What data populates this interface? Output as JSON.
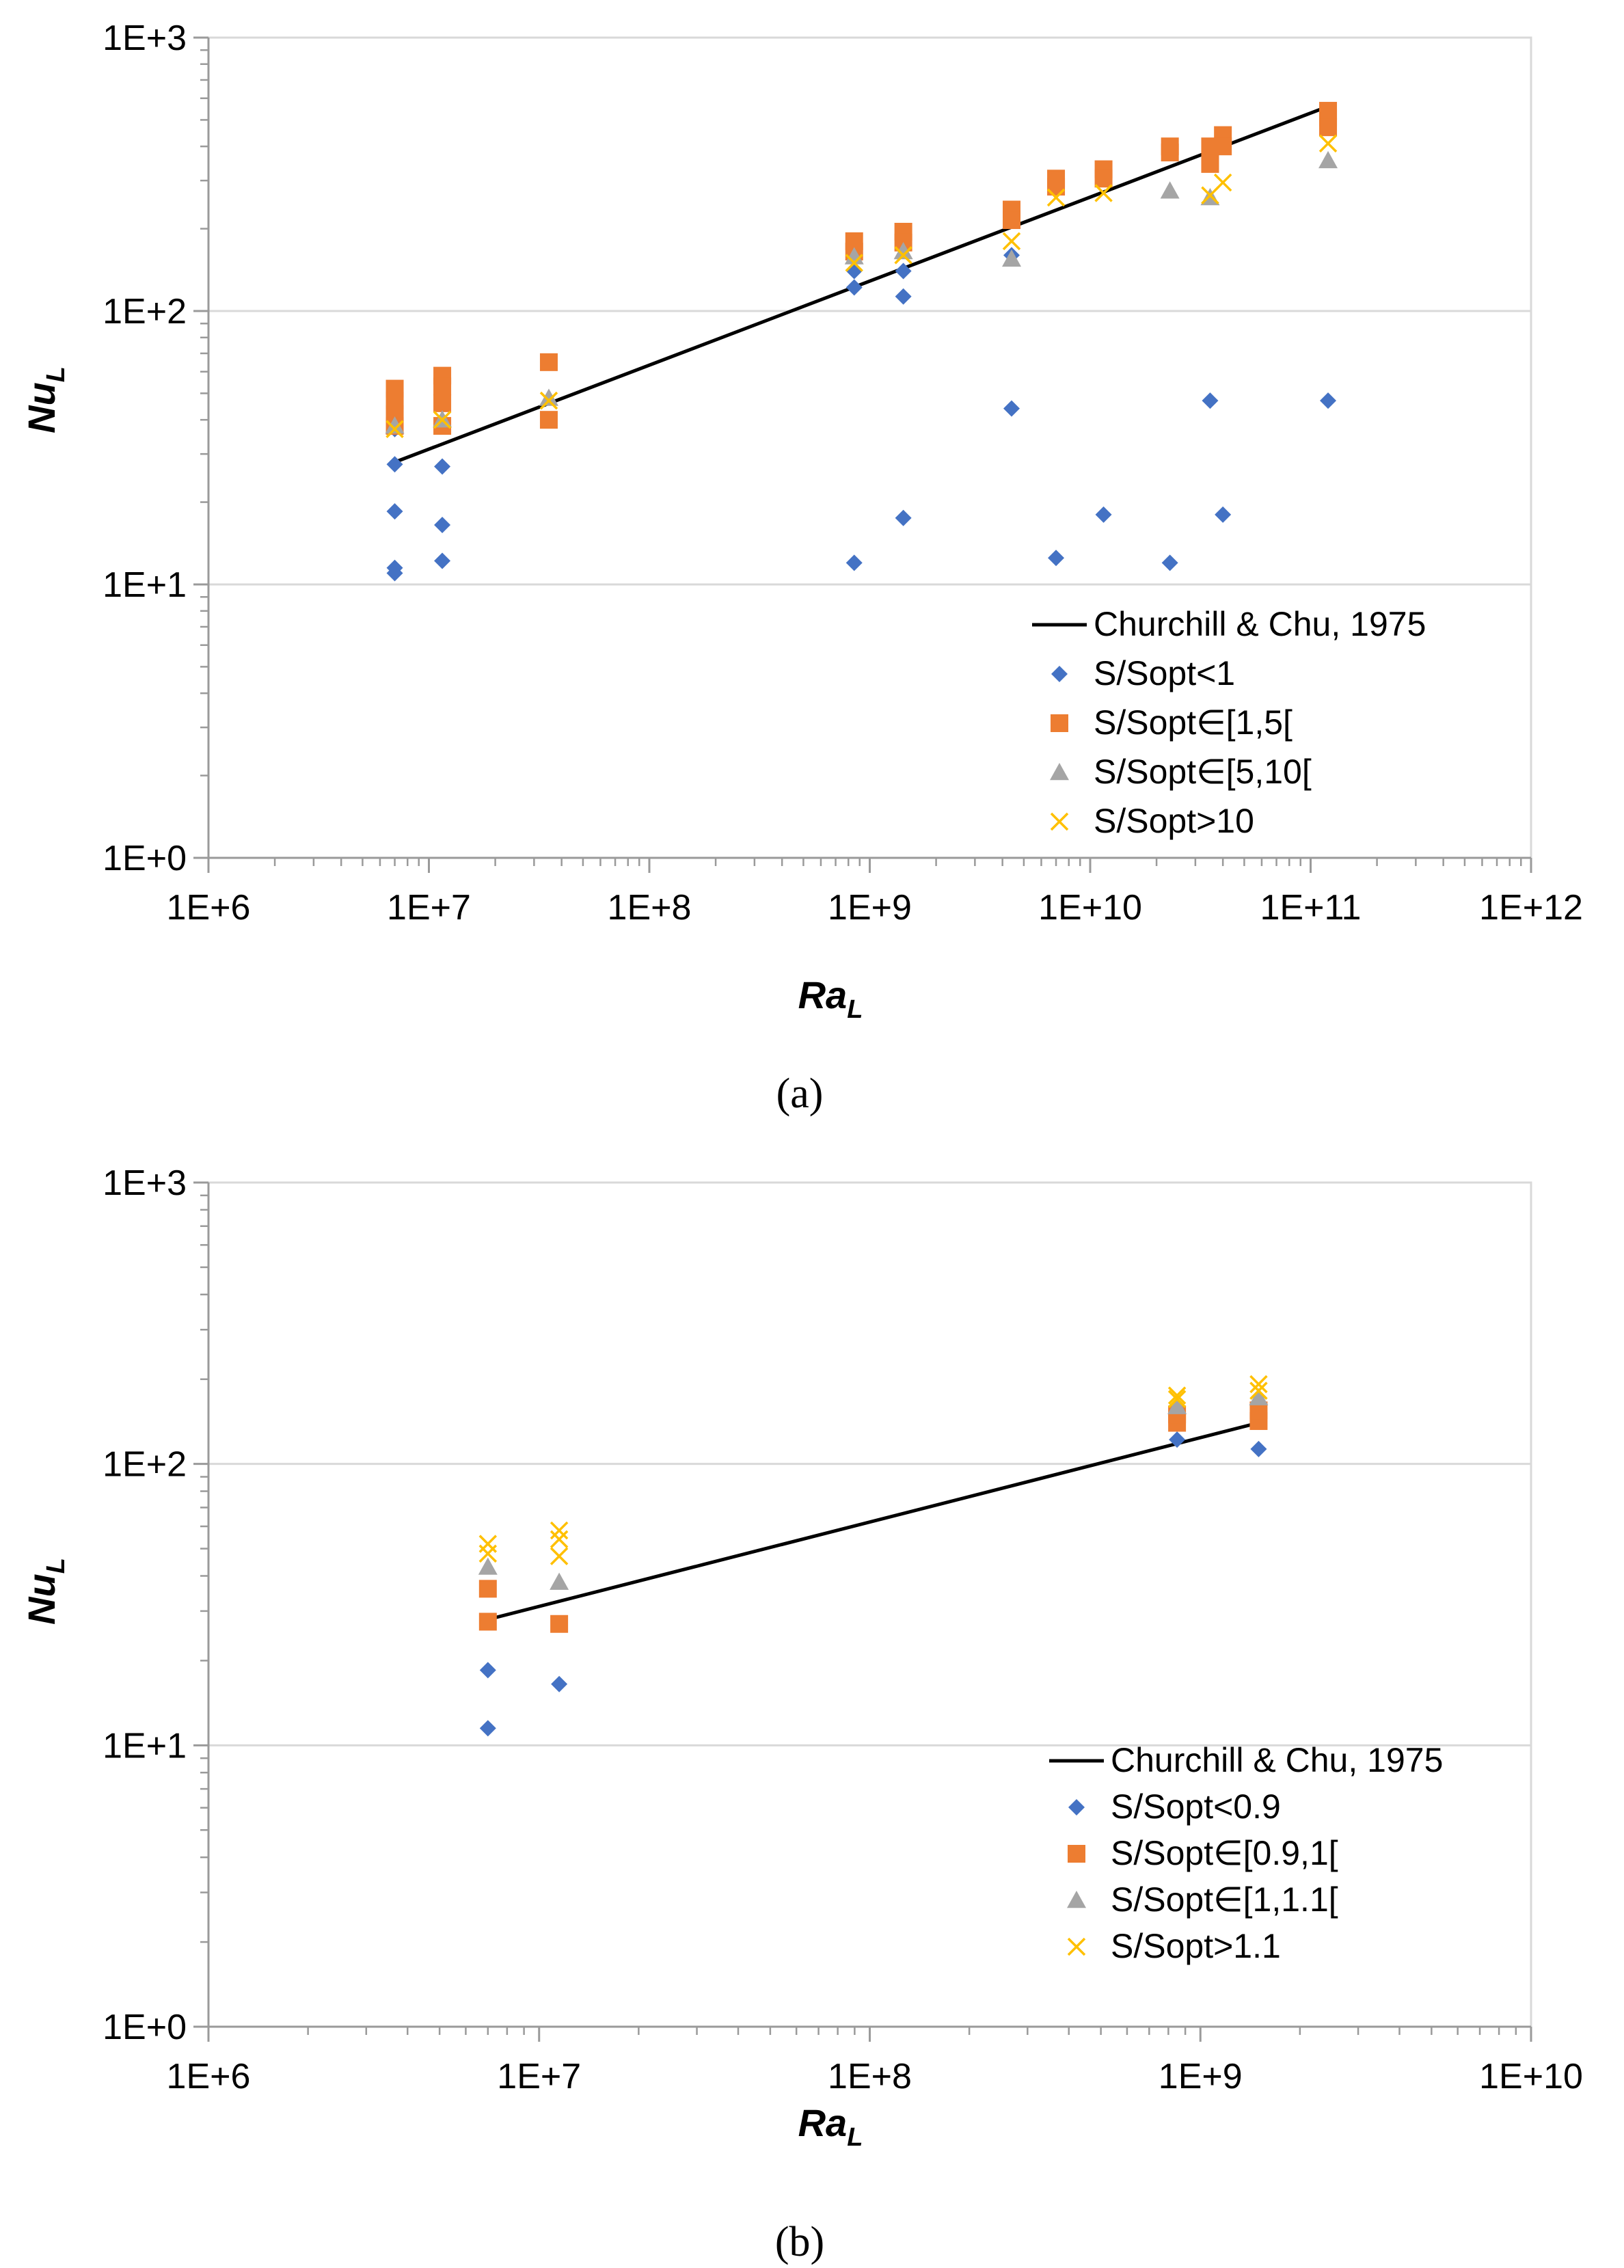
{
  "chart_data": [
    {
      "type": "scatter",
      "panel_label": "(a)",
      "xscale": "log",
      "yscale": "log",
      "xlim": [
        1000000,
        1000000000000
      ],
      "ylim": [
        1,
        1000
      ],
      "x_ticks": [
        "1E+6",
        "1E+7",
        "1E+8",
        "1E+9",
        "1E+10",
        "1E+11",
        "1E+12"
      ],
      "y_ticks": [
        "1E+0",
        "1E+1",
        "1E+2",
        "1E+3"
      ],
      "xlabel": "Ra",
      "xlabel_sub": "L",
      "ylabel": "Nu",
      "ylabel_sub": "L",
      "legend_position": "bottom-right",
      "series": [
        {
          "name": "Churchill & Chu, 1975",
          "kind": "line",
          "color": "#000000",
          "x": [
            7000000,
            120000000000
          ],
          "y": [
            28,
            560
          ]
        },
        {
          "name": "S/Sopt<1",
          "marker": "diamond",
          "color": "#4472C4",
          "x": [
            7000000,
            7000000,
            7000000,
            7000000,
            7000000,
            11500000,
            11500000,
            11500000,
            850000000,
            850000000,
            850000000,
            1420000000,
            1420000000,
            1420000000,
            4400000000,
            4400000000,
            7000000000,
            11500000000,
            23000000000,
            35000000000,
            40000000000,
            120000000000
          ],
          "y": [
            27.5,
            18.5,
            11.5,
            11,
            37,
            27,
            16.5,
            12.2,
            140,
            122,
            12,
            140,
            113,
            17.5,
            160,
            44,
            12.5,
            18,
            12,
            47,
            18,
            47
          ]
        },
        {
          "name": "S/Sopt∈[1,5[",
          "marker": "square",
          "color": "#ED7D31",
          "x": [
            7000000,
            7000000,
            7000000,
            7000000,
            11500000,
            11500000,
            11500000,
            11500000,
            35000000,
            35000000,
            850000000,
            850000000,
            1420000000,
            1420000000,
            4400000000,
            4400000000,
            7000000000,
            7000000000,
            11500000000,
            11500000000,
            23000000000,
            23000000000,
            35000000000,
            35000000000,
            40000000000,
            40000000000,
            120000000000,
            120000000000,
            120000000000
          ],
          "y": [
            52,
            47,
            42,
            38,
            58,
            53,
            46,
            38,
            65,
            40,
            180,
            165,
            195,
            178,
            235,
            215,
            305,
            285,
            330,
            305,
            400,
            380,
            400,
            345,
            440,
            400,
            540,
            510,
            470
          ]
        },
        {
          "name": "S/Sopt∈[5,10[",
          "marker": "triangle",
          "color": "#A5A5A5",
          "x": [
            7000000,
            11500000,
            35000000,
            850000000,
            1420000000,
            4400000000,
            23000000000,
            35000000000,
            120000000000
          ],
          "y": [
            38,
            40,
            48,
            158,
            165,
            155,
            275,
            260,
            355
          ]
        },
        {
          "name": "S/Sopt>10",
          "marker": "x",
          "color": "#FFC000",
          "x": [
            7000000,
            11500000,
            35000000,
            850000000,
            1420000000,
            4400000000,
            7000000000,
            11500000000,
            35000000000,
            40000000000,
            120000000000
          ],
          "y": [
            37,
            40,
            47,
            150,
            160,
            180,
            260,
            270,
            265,
            295,
            410
          ]
        }
      ]
    },
    {
      "type": "scatter",
      "panel_label": "(b)",
      "xscale": "log",
      "yscale": "log",
      "xlim": [
        1000000,
        10000000000
      ],
      "ylim": [
        1,
        1000
      ],
      "x_ticks": [
        "1E+6",
        "1E+7",
        "1E+8",
        "1E+9",
        "1E+10"
      ],
      "y_ticks": [
        "1E+0",
        "1E+1",
        "1E+2",
        "1E+3"
      ],
      "xlabel": "Ra",
      "xlabel_sub": "L",
      "ylabel": "Nu",
      "ylabel_sub": "L",
      "legend_position": "bottom-right",
      "series": [
        {
          "name": "Churchill & Chu, 1975",
          "kind": "line",
          "color": "#000000",
          "x": [
            7000000,
            1500000000
          ],
          "y": [
            28,
            140
          ]
        },
        {
          "name": "S/Sopt<0.9",
          "marker": "diamond",
          "color": "#4472C4",
          "x": [
            7000000,
            7000000,
            11500000,
            850000000,
            1500000000
          ],
          "y": [
            18.5,
            11.5,
            16.5,
            122,
            113
          ]
        },
        {
          "name": "S/Sopt∈[0.9,1[",
          "marker": "square",
          "color": "#ED7D31",
          "x": [
            7000000,
            7000000,
            11500000,
            850000000,
            850000000,
            1500000000,
            1500000000
          ],
          "y": [
            36,
            27.5,
            27,
            140,
            150,
            142,
            155
          ]
        },
        {
          "name": "S/Sopt∈[1,1.1[",
          "marker": "triangle",
          "color": "#A5A5A5",
          "x": [
            7000000,
            11500000,
            850000000,
            1500000000
          ],
          "y": [
            43,
            38,
            160,
            172
          ]
        },
        {
          "name": "S/Sopt>1.1",
          "marker": "x",
          "color": "#FFC000",
          "x": [
            7000000,
            7000000,
            11500000,
            11500000,
            11500000,
            850000000,
            850000000,
            1500000000,
            1500000000
          ],
          "y": [
            52,
            48,
            58,
            54,
            47,
            175,
            170,
            192,
            182
          ]
        }
      ]
    }
  ]
}
